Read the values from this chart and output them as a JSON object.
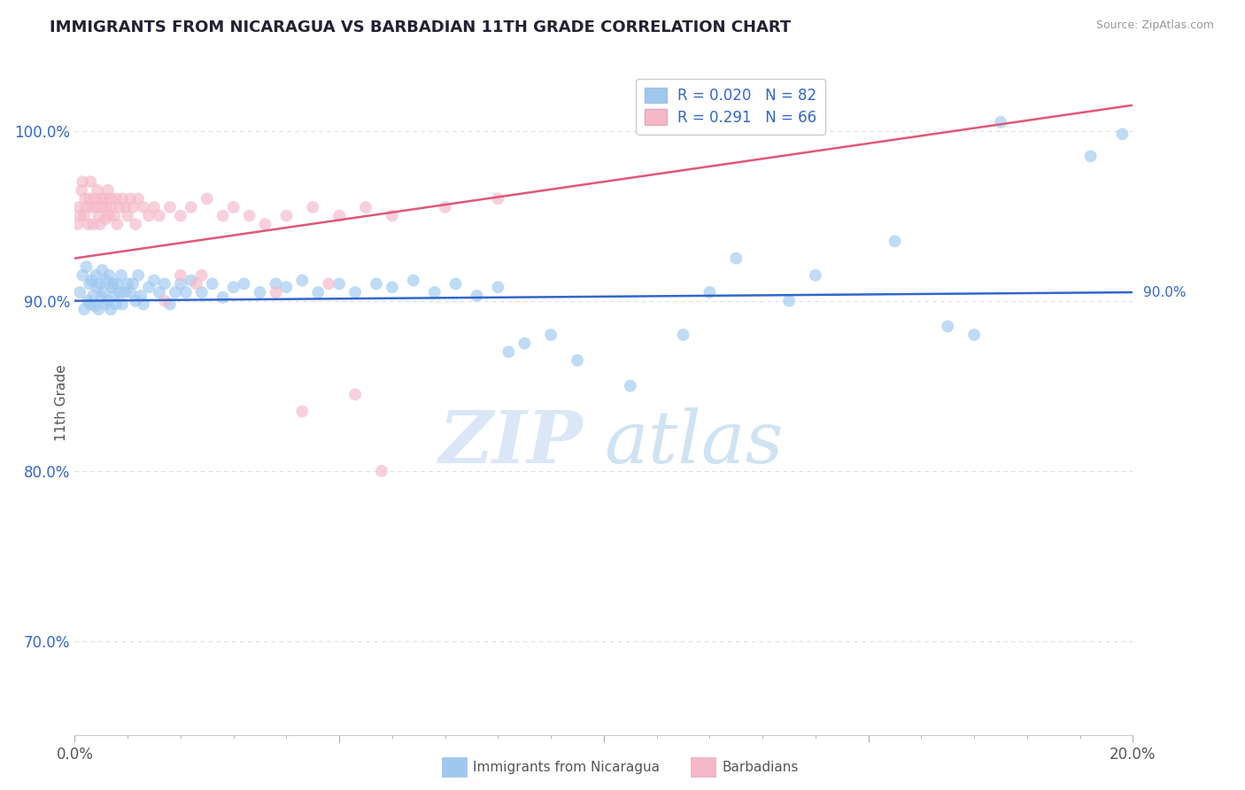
{
  "title": "IMMIGRANTS FROM NICARAGUA VS BARBADIAN 11TH GRADE CORRELATION CHART",
  "source_text": "Source: ZipAtlas.com",
  "ylabel": "11th Grade",
  "xlim": [
    0.0,
    20.0
  ],
  "ylim": [
    64.5,
    103.5
  ],
  "xticks_major": [
    0.0,
    5.0,
    10.0,
    15.0,
    20.0
  ],
  "xticks_minor": [
    1.0,
    2.0,
    3.0,
    4.0,
    6.0,
    7.0,
    8.0,
    9.0,
    11.0,
    12.0,
    13.0,
    14.0,
    16.0,
    17.0,
    18.0,
    19.0
  ],
  "xtick_labels_show": {
    "0.0": "0.0%",
    "20.0": "20.0%"
  },
  "ytick_positions": [
    70.0,
    80.0,
    90.0,
    100.0
  ],
  "ytick_labels": [
    "70.0%",
    "80.0%",
    "90.0%",
    "100.0%"
  ],
  "blue_color": "#9ec8f0",
  "pink_color": "#f5b8c8",
  "blue_line_color": "#3366cc",
  "pink_line_color": "#e05878",
  "blue_line_label_color": "#3366cc",
  "ytick_color": "#3366cc",
  "title_color": "#222233",
  "source_color": "#999999",
  "background_color": "#ffffff",
  "watermark_zip_color": "#ccddf5",
  "watermark_atlas_color": "#aacce8",
  "blue_scatter_x": [
    0.1,
    0.15,
    0.18,
    0.22,
    0.25,
    0.28,
    0.3,
    0.32,
    0.35,
    0.38,
    0.4,
    0.42,
    0.45,
    0.48,
    0.5,
    0.52,
    0.55,
    0.58,
    0.6,
    0.63,
    0.65,
    0.68,
    0.7,
    0.72,
    0.75,
    0.78,
    0.8,
    0.85,
    0.88,
    0.9,
    0.95,
    1.0,
    1.05,
    1.1,
    1.15,
    1.2,
    1.25,
    1.3,
    1.4,
    1.5,
    1.6,
    1.7,
    1.8,
    1.9,
    2.0,
    2.1,
    2.2,
    2.4,
    2.6,
    2.8,
    3.0,
    3.2,
    3.5,
    3.8,
    4.0,
    4.3,
    4.6,
    5.0,
    5.3,
    5.7,
    6.0,
    6.4,
    6.8,
    7.2,
    7.6,
    8.0,
    8.5,
    9.5,
    10.5,
    11.5,
    12.5,
    14.0,
    15.5,
    17.5,
    19.2,
    19.8,
    9.0,
    8.2,
    12.0,
    13.5,
    16.5,
    17.0
  ],
  "blue_scatter_y": [
    90.5,
    91.5,
    89.5,
    92.0,
    90.0,
    91.0,
    89.8,
    91.2,
    90.3,
    89.7,
    91.5,
    90.8,
    89.5,
    91.0,
    90.2,
    91.8,
    90.5,
    89.8,
    91.2,
    90.0,
    91.5,
    89.5,
    90.8,
    91.0,
    90.3,
    89.8,
    91.0,
    90.5,
    91.5,
    89.8,
    90.5,
    91.0,
    90.5,
    91.0,
    90.0,
    91.5,
    90.3,
    89.8,
    90.8,
    91.2,
    90.5,
    91.0,
    89.8,
    90.5,
    91.0,
    90.5,
    91.2,
    90.5,
    91.0,
    90.2,
    90.8,
    91.0,
    90.5,
    91.0,
    90.8,
    91.2,
    90.5,
    91.0,
    90.5,
    91.0,
    90.8,
    91.2,
    90.5,
    91.0,
    90.3,
    90.8,
    87.5,
    86.5,
    85.0,
    88.0,
    92.5,
    91.5,
    93.5,
    100.5,
    98.5,
    99.8,
    88.0,
    87.0,
    90.5,
    90.0,
    88.5,
    88.0
  ],
  "pink_scatter_x": [
    0.05,
    0.08,
    0.1,
    0.13,
    0.15,
    0.18,
    0.2,
    0.22,
    0.25,
    0.28,
    0.3,
    0.32,
    0.35,
    0.38,
    0.4,
    0.43,
    0.45,
    0.48,
    0.5,
    0.52,
    0.55,
    0.58,
    0.6,
    0.63,
    0.65,
    0.68,
    0.7,
    0.75,
    0.78,
    0.8,
    0.85,
    0.9,
    0.95,
    1.0,
    1.05,
    1.1,
    1.15,
    1.2,
    1.3,
    1.4,
    1.5,
    1.6,
    1.8,
    2.0,
    2.2,
    2.5,
    2.8,
    3.0,
    3.3,
    3.6,
    4.0,
    4.5,
    5.0,
    5.5,
    6.0,
    7.0,
    8.0,
    2.4,
    3.8,
    4.8,
    5.8,
    2.0,
    1.7,
    2.3,
    5.3,
    4.3
  ],
  "pink_scatter_y": [
    94.5,
    95.5,
    95.0,
    96.5,
    97.0,
    95.0,
    96.0,
    95.5,
    94.5,
    96.0,
    97.0,
    95.5,
    94.5,
    96.0,
    95.5,
    96.5,
    95.0,
    94.5,
    96.0,
    95.5,
    96.0,
    94.8,
    95.5,
    96.5,
    95.0,
    96.0,
    95.5,
    95.0,
    96.0,
    94.5,
    95.5,
    96.0,
    95.5,
    95.0,
    96.0,
    95.5,
    94.5,
    96.0,
    95.5,
    95.0,
    95.5,
    95.0,
    95.5,
    95.0,
    95.5,
    96.0,
    95.0,
    95.5,
    95.0,
    94.5,
    95.0,
    95.5,
    95.0,
    95.5,
    95.0,
    95.5,
    96.0,
    91.5,
    90.5,
    91.0,
    80.0,
    91.5,
    90.0,
    91.0,
    84.5,
    83.5
  ],
  "blue_trend_x": [
    0.0,
    20.0
  ],
  "blue_trend_y": [
    90.0,
    90.5
  ],
  "pink_trend_x": [
    0.0,
    20.0
  ],
  "pink_trend_y": [
    92.5,
    101.5
  ],
  "trend_line_label_90": "90.0%",
  "grid_color": "#dddddd",
  "dot_size": 100,
  "dot_alpha": 0.65,
  "dot_edgewidth": 0
}
